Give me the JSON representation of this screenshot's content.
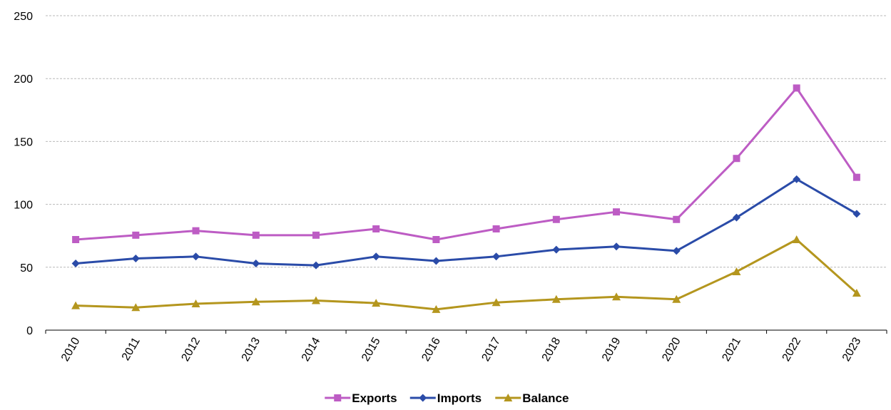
{
  "chart_data": {
    "type": "line",
    "title": "",
    "xlabel": "",
    "ylabel": "",
    "ylim": [
      0,
      250
    ],
    "yticks": [
      0,
      50,
      100,
      150,
      200,
      250
    ],
    "grid": "horizontal dashed",
    "legend_position": "bottom",
    "categories": [
      "2010",
      "2011",
      "2012",
      "2013",
      "2014",
      "2015",
      "2016",
      "2017",
      "2018",
      "2019",
      "2020",
      "2021",
      "2022",
      "2023"
    ],
    "series": [
      {
        "name": "Exports",
        "color": "#BD5CC4",
        "marker": "square",
        "values": [
          72,
          75.5,
          79,
          75.5,
          75.5,
          80.5,
          72,
          80.5,
          88,
          94,
          88,
          136.5,
          192.5,
          121.5
        ]
      },
      {
        "name": "Imports",
        "color": "#2A4BA8",
        "marker": "diamond",
        "values": [
          53,
          57,
          58.5,
          53,
          51.5,
          58.5,
          55,
          58.5,
          64,
          66.5,
          63,
          89.5,
          120,
          92.5
        ]
      },
      {
        "name": "Balance",
        "color": "#B4961E",
        "marker": "triangle",
        "values": [
          19.5,
          18,
          21,
          22.5,
          23.5,
          21.5,
          16.5,
          22,
          24.5,
          26.5,
          24.5,
          46.5,
          72,
          29.5
        ]
      }
    ]
  }
}
